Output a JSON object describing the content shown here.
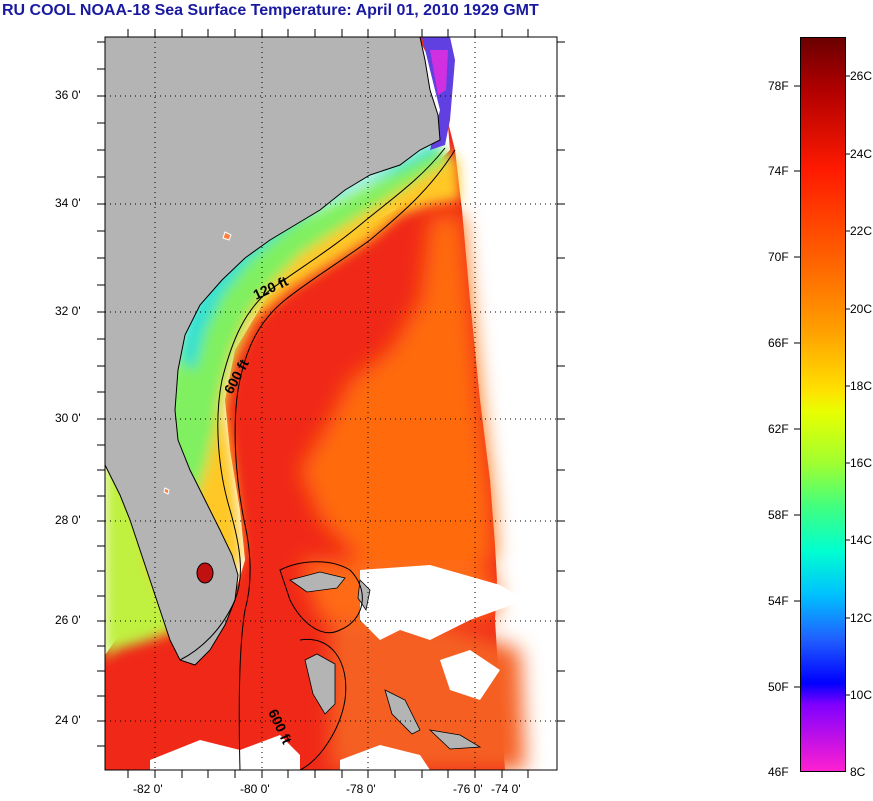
{
  "title": "RU COOL  NOAA-18  Sea Surface Temperature:  April 01, 2010 1929 GMT",
  "map": {
    "lat_ticks": [
      "36 0'",
      "34 0'",
      "32 0'",
      "30 0'",
      "28 0'",
      "26 0'",
      "24 0'"
    ],
    "lon_ticks": [
      "-82 0'",
      "-80 0'",
      "-78 0'",
      "-76 0'",
      "-74 0'"
    ],
    "contour_labels": [
      "120 ft",
      "600 ft",
      "600 ft"
    ],
    "colors": {
      "land": "#b4b4b4",
      "no_data": "#ffffff",
      "gulf_stream": "#f02010",
      "shelf_cool": "#30e0c0"
    }
  },
  "colorbar": {
    "fahrenheit_labels": [
      "78F",
      "74F",
      "70F",
      "66F",
      "62F",
      "58F",
      "54F",
      "50F",
      "46F"
    ],
    "celsius_labels": [
      "26C",
      "24C",
      "22C",
      "20C",
      "18C",
      "16C",
      "14C",
      "12C",
      "10C",
      "8C"
    ]
  }
}
